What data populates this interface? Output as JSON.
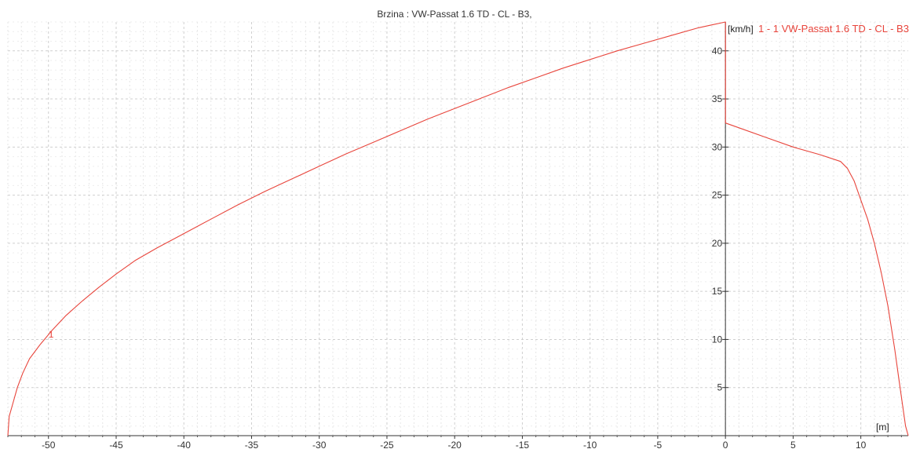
{
  "chart_data": {
    "type": "line",
    "title": "Brzina : VW-Passat 1.6 TD - CL - B3,",
    "xlabel": "[m]",
    "ylabel": "[km/h]",
    "xlim": [
      -53,
      13.5
    ],
    "ylim": [
      0,
      43
    ],
    "x_ticks": [
      -50,
      -45,
      -40,
      -35,
      -30,
      -25,
      -20,
      -15,
      -10,
      -5,
      0,
      5,
      10
    ],
    "y_ticks": [
      5,
      10,
      15,
      20,
      25,
      30,
      35,
      40
    ],
    "grid": true,
    "legend": {
      "position": "top-right",
      "entries": [
        "1 - 1 VW-Passat 1.6 TD - CL - B3"
      ]
    },
    "series": [
      {
        "name": "1 - 1 VW-Passat 1.6 TD - CL - B3",
        "label": "1",
        "color": "#e8453c",
        "x": [
          -53.0,
          -52.9,
          -52.6,
          -52.3,
          -51.9,
          -51.4,
          -50.6,
          -49.7,
          -48.7,
          -47.5,
          -46.3,
          -45.0,
          -43.6,
          -42.0,
          -40.0,
          -38.0,
          -36.0,
          -34.0,
          -32.0,
          -30.0,
          -28.0,
          -26.0,
          -24.0,
          -22.0,
          -20.0,
          -18.0,
          -16.0,
          -14.0,
          -12.0,
          -10.0,
          -8.0,
          -6.0,
          -4.0,
          -2.0,
          -1.0,
          0.0,
          0.0,
          0.0,
          1.0,
          3.0,
          5.0,
          7.0,
          8.5,
          9.0,
          9.5,
          10.0,
          10.5,
          11.0,
          11.5,
          12.0,
          12.5,
          12.8,
          13.1,
          13.3,
          13.5
        ],
        "y": [
          0,
          2.0,
          3.5,
          5.0,
          6.5,
          8.0,
          9.5,
          11.0,
          12.5,
          14.0,
          15.4,
          16.8,
          18.2,
          19.5,
          21.0,
          22.5,
          24.0,
          25.4,
          26.7,
          28.0,
          29.3,
          30.5,
          31.7,
          32.9,
          34.0,
          35.1,
          36.2,
          37.2,
          38.2,
          39.1,
          40.0,
          40.8,
          41.6,
          42.4,
          42.7,
          43.0,
          40.0,
          32.5,
          32.0,
          31.0,
          30.0,
          29.2,
          28.5,
          27.8,
          26.5,
          24.5,
          22.5,
          20.0,
          17.0,
          13.5,
          9.0,
          6.0,
          3.0,
          1.0,
          0
        ]
      }
    ]
  }
}
